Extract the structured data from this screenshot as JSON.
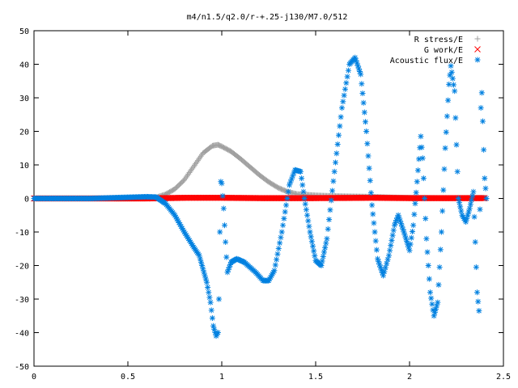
{
  "chart_data": {
    "type": "scatter",
    "title": "m4/n1.5/q2.0/r-+.25-j130/M7.0/512",
    "xlabel": "",
    "ylabel": "",
    "xlim": [
      0,
      2.5
    ],
    "ylim": [
      -50,
      50
    ],
    "xticks": [
      "0",
      "0.5",
      "1",
      "1.5",
      "2",
      "2.5"
    ],
    "yticks": [
      "50",
      "40",
      "30",
      "20",
      "10",
      "0",
      "-10",
      "-20",
      "-30",
      "-40",
      "-50"
    ],
    "legend_position": "top-right",
    "grid": false,
    "series": [
      {
        "name": "R stress/E",
        "marker": "+",
        "color": "#a0a0a0",
        "points": [
          [
            0,
            0
          ],
          [
            0.3,
            0
          ],
          [
            0.6,
            0
          ],
          [
            0.65,
            0.3
          ],
          [
            0.7,
            1.2
          ],
          [
            0.75,
            2.8
          ],
          [
            0.8,
            5.5
          ],
          [
            0.85,
            9.5
          ],
          [
            0.9,
            13.5
          ],
          [
            0.95,
            15.7
          ],
          [
            0.98,
            16
          ],
          [
            1.0,
            15.5
          ],
          [
            1.05,
            14
          ],
          [
            1.1,
            11.8
          ],
          [
            1.15,
            9.4
          ],
          [
            1.2,
            7
          ],
          [
            1.25,
            4.9
          ],
          [
            1.3,
            3.2
          ],
          [
            1.35,
            2
          ],
          [
            1.4,
            1.3
          ],
          [
            1.5,
            0.9
          ],
          [
            1.6,
            0.7
          ],
          [
            1.7,
            0.6
          ],
          [
            1.8,
            0.5
          ],
          [
            1.9,
            0.3
          ],
          [
            2.0,
            0.2
          ],
          [
            2.2,
            0.1
          ],
          [
            2.4,
            0.2
          ]
        ]
      },
      {
        "name": "G work/E",
        "marker": "x",
        "color": "#ff0000",
        "points": [
          [
            0,
            0
          ],
          [
            0.6,
            0
          ],
          [
            0.8,
            0.2
          ],
          [
            1.0,
            0.2
          ],
          [
            1.2,
            0.1
          ],
          [
            1.5,
            0.1
          ],
          [
            1.8,
            0.2
          ],
          [
            2.0,
            0.1
          ],
          [
            2.2,
            0.1
          ],
          [
            2.4,
            0.1
          ]
        ]
      },
      {
        "name": "Acoustic flux/E",
        "marker": "*",
        "color": "#0080e0",
        "points": [
          [
            0,
            0
          ],
          [
            0.3,
            0
          ],
          [
            0.6,
            0.5
          ],
          [
            0.65,
            0.4
          ],
          [
            0.7,
            -1.5
          ],
          [
            0.75,
            -5
          ],
          [
            0.8,
            -10
          ],
          [
            0.85,
            -14.5
          ],
          [
            0.88,
            -17
          ],
          [
            0.9,
            -21
          ],
          [
            0.92,
            -25
          ],
          [
            0.94,
            -31
          ],
          [
            0.955,
            -38
          ],
          [
            0.97,
            -41
          ],
          [
            0.98,
            -40
          ],
          [
            0.985,
            -30
          ],
          [
            0.99,
            -10
          ],
          [
            0.995,
            5
          ],
          [
            1.0,
            4.5
          ],
          [
            1.01,
            -3
          ],
          [
            1.02,
            -13
          ],
          [
            1.03,
            -22
          ],
          [
            1.05,
            -19
          ],
          [
            1.08,
            -18
          ],
          [
            1.12,
            -19
          ],
          [
            1.18,
            -22
          ],
          [
            1.22,
            -24.5
          ],
          [
            1.25,
            -24.5
          ],
          [
            1.28,
            -21.5
          ],
          [
            1.32,
            -10
          ],
          [
            1.36,
            4
          ],
          [
            1.39,
            8.5
          ],
          [
            1.42,
            8
          ],
          [
            1.44,
            0
          ],
          [
            1.47,
            -10
          ],
          [
            1.5,
            -18.5
          ],
          [
            1.53,
            -20
          ],
          [
            1.56,
            -12
          ],
          [
            1.6,
            8
          ],
          [
            1.64,
            27
          ],
          [
            1.68,
            40
          ],
          [
            1.71,
            42
          ],
          [
            1.74,
            37
          ],
          [
            1.77,
            20
          ],
          [
            1.8,
            -2
          ],
          [
            1.83,
            -18
          ],
          [
            1.86,
            -23
          ],
          [
            1.89,
            -17
          ],
          [
            1.92,
            -8
          ],
          [
            1.94,
            -5
          ],
          [
            1.97,
            -10
          ],
          [
            2.0,
            -15.5
          ],
          [
            2.02,
            -8
          ],
          [
            2.04,
            5
          ],
          [
            2.06,
            18.5
          ],
          [
            2.07,
            12
          ],
          [
            2.09,
            -12
          ],
          [
            2.11,
            -28
          ],
          [
            2.13,
            -35
          ],
          [
            2.15,
            -31
          ],
          [
            2.17,
            -10
          ],
          [
            2.19,
            15
          ],
          [
            2.21,
            34
          ],
          [
            2.22,
            39.5
          ],
          [
            2.24,
            32
          ],
          [
            2.26,
            0
          ],
          [
            2.28,
            -5
          ],
          [
            2.3,
            -7
          ],
          [
            2.32,
            -3
          ],
          [
            2.34,
            2
          ],
          [
            2.36,
            -28
          ],
          [
            2.37,
            -33.5
          ],
          [
            2.38,
            27
          ],
          [
            2.385,
            31.5
          ],
          [
            2.4,
            6
          ],
          [
            2.41,
            0
          ]
        ]
      }
    ]
  }
}
